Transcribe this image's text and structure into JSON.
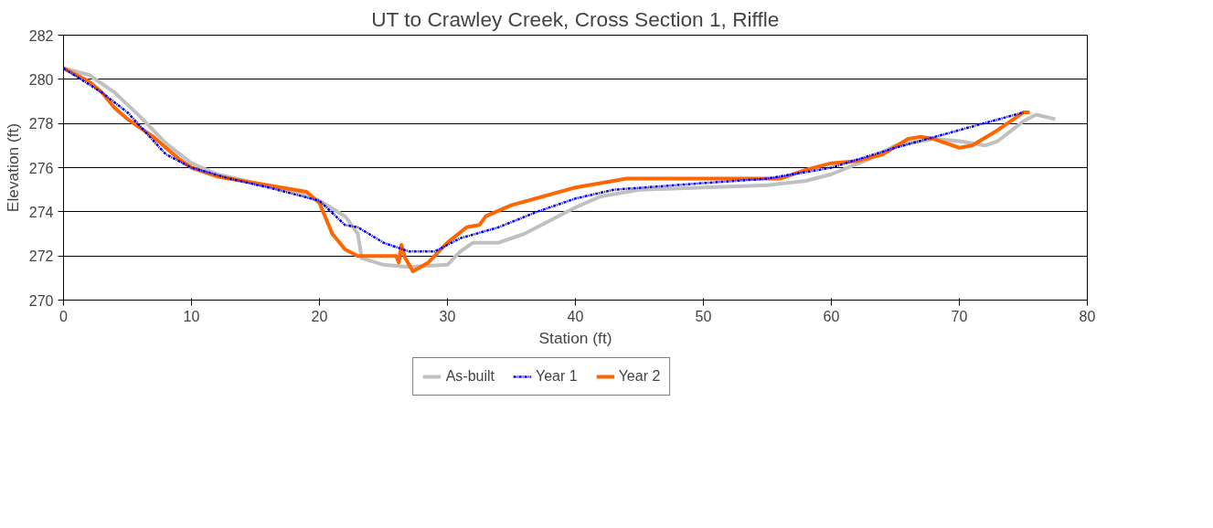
{
  "chart_data": {
    "type": "line",
    "title": "UT to Crawley Creek, Cross Section 1, Riffle",
    "xlabel": "Station (ft)",
    "ylabel": "Elevation (ft)",
    "xlim": [
      0,
      80
    ],
    "xticks": [
      0,
      10,
      20,
      30,
      40,
      50,
      60,
      70,
      80
    ],
    "ylim": [
      270,
      282
    ],
    "yticks": [
      270,
      272,
      274,
      276,
      278,
      280,
      282
    ],
    "grid": "y",
    "legend": "bottom",
    "marker": "none",
    "series": [
      {
        "name": "As-built",
        "color": "#c0c0c0",
        "line_style": "solid",
        "x": [
          0,
          2,
          4,
          6,
          8,
          10,
          12,
          15,
          18,
          20,
          22,
          23,
          23.3,
          25,
          27,
          30,
          31,
          32,
          34,
          36,
          38,
          40,
          42,
          45,
          50,
          55,
          58,
          60,
          63,
          65,
          68,
          70,
          72,
          73,
          75,
          76,
          77.5
        ],
        "values": [
          280.5,
          280.2,
          279.4,
          278.3,
          277.1,
          276.2,
          275.7,
          275.3,
          274.9,
          274.5,
          273.8,
          273,
          271.9,
          271.6,
          271.5,
          271.6,
          272.2,
          272.6,
          272.6,
          273,
          273.6,
          274.2,
          274.7,
          275,
          275.1,
          275.2,
          275.4,
          275.7,
          276.4,
          277,
          277.3,
          277.2,
          277,
          277.2,
          278.1,
          278.4,
          278.2
        ]
      },
      {
        "name": "Year 1",
        "color": "#0000ff",
        "line_style": "dashdot",
        "x": [
          0,
          3,
          5,
          8,
          10,
          13,
          16,
          20,
          22,
          23,
          25,
          27,
          29,
          31,
          34,
          37,
          40,
          43,
          50,
          55,
          60,
          65,
          70,
          75
        ],
        "values": [
          280.5,
          279.4,
          278.5,
          276.6,
          276,
          275.5,
          275.1,
          274.5,
          273.4,
          273.3,
          272.6,
          272.2,
          272.2,
          272.8,
          273.3,
          274,
          274.6,
          275,
          275.3,
          275.5,
          276,
          276.9,
          277.7,
          278.5
        ]
      },
      {
        "name": "Year 2",
        "color": "#ff6600",
        "line_style": "solid",
        "x": [
          0,
          2,
          3,
          4,
          5,
          7,
          9,
          10,
          12,
          15,
          17,
          19,
          20,
          21,
          22,
          23,
          26,
          26.2,
          26.4,
          26.7,
          27.3,
          28.5,
          30,
          31.5,
          32.5,
          33,
          35,
          40,
          44,
          50,
          56,
          58,
          60,
          62,
          64,
          66,
          67,
          68,
          70,
          71,
          73,
          75,
          75.5
        ],
        "values": [
          280.5,
          279.9,
          279.4,
          278.7,
          278.2,
          277.4,
          276.4,
          276,
          275.6,
          275.3,
          275.1,
          274.9,
          274.4,
          273,
          272.3,
          272,
          272,
          271.7,
          272.5,
          271.9,
          271.3,
          271.7,
          272.6,
          273.3,
          273.4,
          273.8,
          274.3,
          275.1,
          275.5,
          275.5,
          275.5,
          275.9,
          276.2,
          276.3,
          276.6,
          277.3,
          277.4,
          277.3,
          276.9,
          277,
          277.7,
          278.5,
          278.5
        ]
      }
    ]
  }
}
